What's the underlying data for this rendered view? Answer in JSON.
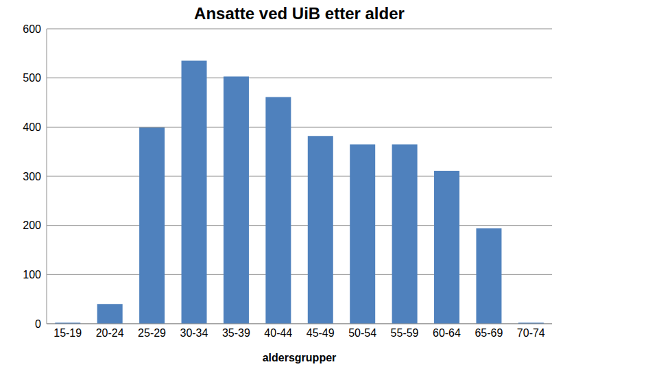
{
  "chart_data": {
    "type": "bar",
    "title": "Ansatte ved UiB etter alder",
    "x_label": "aldersgrupper",
    "categories": [
      "15-19",
      "20-24",
      "25-29",
      "30-34",
      "35-39",
      "40-44",
      "45-49",
      "50-54",
      "55-59",
      "60-64",
      "65-69",
      "70-74"
    ],
    "values": [
      2,
      40,
      399,
      535,
      503,
      461,
      382,
      365,
      365,
      311,
      194,
      2
    ],
    "color": "#4f81bd",
    "ylim": [
      0,
      600
    ],
    "yticks": [
      0,
      100,
      200,
      300,
      400,
      500,
      600
    ],
    "grid": true
  }
}
